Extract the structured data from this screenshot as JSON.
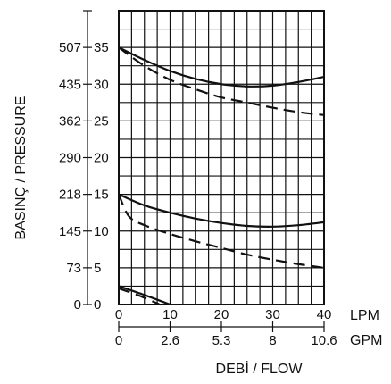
{
  "chart_data": {
    "type": "line",
    "title": "",
    "xlabel": "DEBİ / FLOW",
    "ylabel": "BASINÇ / PRESSURE",
    "grid": true,
    "xlim": [
      0,
      40
    ],
    "ylim": [
      0,
      40
    ],
    "x_primary": {
      "unit": "LPM",
      "ticks": [
        0,
        10,
        20,
        30,
        40
      ],
      "labels": [
        "0",
        "10",
        "20",
        "30",
        "40"
      ]
    },
    "x_secondary": {
      "unit": "GPM",
      "ticks": [
        0,
        10,
        20,
        30,
        40
      ],
      "labels": [
        "0",
        "2.6",
        "5.3",
        "8",
        "10.6"
      ]
    },
    "y_primary": {
      "ticks": [
        0,
        5,
        10,
        15,
        20,
        25,
        30,
        35
      ],
      "labels": [
        "0",
        "5",
        "10",
        "15",
        "20",
        "25",
        "30",
        "35"
      ]
    },
    "y_secondary": {
      "ticks": [
        0,
        5,
        10,
        15,
        20,
        25,
        30,
        35
      ],
      "labels": [
        "0",
        "73",
        "145",
        "218",
        "290",
        "362",
        "435",
        "507"
      ]
    },
    "series": [
      {
        "style": "solid",
        "points": [
          [
            0,
            35
          ],
          [
            5,
            33.3
          ],
          [
            10,
            31.8
          ],
          [
            15,
            30.7
          ],
          [
            20,
            30
          ],
          [
            25,
            29.7
          ],
          [
            30,
            29.8
          ],
          [
            35,
            30.3
          ],
          [
            40,
            31
          ]
        ]
      },
      {
        "style": "dashed",
        "points": [
          [
            0,
            35
          ],
          [
            5,
            32.5
          ],
          [
            10,
            30.6
          ],
          [
            15,
            29.3
          ],
          [
            20,
            28.2
          ],
          [
            25,
            27.5
          ],
          [
            30,
            26.8
          ],
          [
            35,
            26.2
          ],
          [
            40,
            25.8
          ]
        ]
      },
      {
        "style": "solid",
        "points": [
          [
            0,
            15
          ],
          [
            5,
            13.5
          ],
          [
            10,
            12.5
          ],
          [
            15,
            11.7
          ],
          [
            20,
            11.1
          ],
          [
            25,
            10.7
          ],
          [
            30,
            10.6
          ],
          [
            35,
            10.8
          ],
          [
            40,
            11.2
          ]
        ]
      },
      {
        "style": "dashed",
        "points": [
          [
            0,
            15
          ],
          [
            2,
            12
          ],
          [
            5,
            10.8
          ],
          [
            10,
            9.6
          ],
          [
            15,
            8.6
          ],
          [
            20,
            7.7
          ],
          [
            25,
            6.8
          ],
          [
            30,
            6.1
          ],
          [
            35,
            5.5
          ],
          [
            40,
            5
          ]
        ]
      },
      {
        "style": "solid",
        "points": [
          [
            0,
            2.5
          ],
          [
            5,
            1.3
          ],
          [
            10,
            0
          ]
        ]
      },
      {
        "style": "dashed",
        "points": [
          [
            0,
            2.2
          ],
          [
            4,
            1.2
          ],
          [
            8,
            0
          ]
        ]
      }
    ]
  }
}
